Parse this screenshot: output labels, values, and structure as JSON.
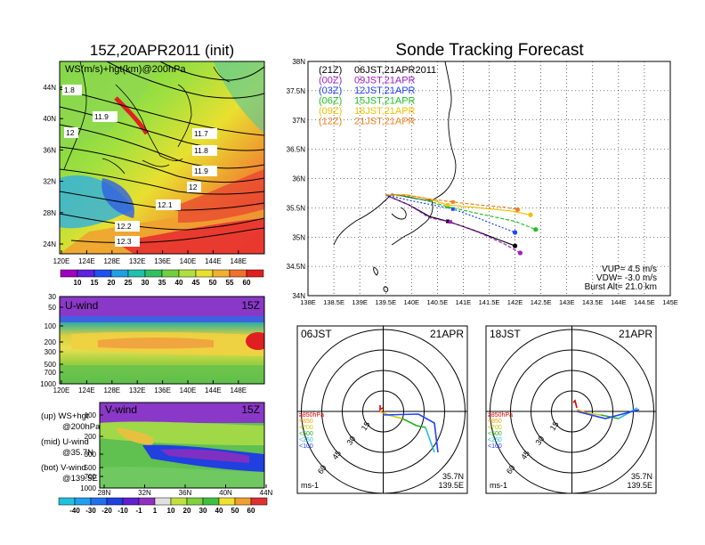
{
  "left_panel": {
    "title": "15Z,20APR2011 (init)",
    "top_map": {
      "label": "WS(m/s)+hgt(km)@200hPa",
      "y_ticks": [
        "44N",
        "40N",
        "36N",
        "32N",
        "28N",
        "24N"
      ],
      "x_ticks": [
        "120E",
        "124E",
        "128E",
        "132E",
        "136E",
        "140E",
        "144E",
        "148E"
      ],
      "contour_labels": [
        "1.8",
        "11.9",
        "12",
        "11.7",
        "11.8",
        "11.9",
        "12",
        "12.1",
        "12.2",
        "12.3"
      ]
    },
    "ws_colorbar": [
      "10",
      "15",
      "20",
      "25",
      "30",
      "35",
      "40",
      "45",
      "50",
      "55",
      "60"
    ],
    "u_wind": {
      "label": "U-wind",
      "time": "15Z",
      "y_ticks": [
        "30",
        "50",
        "100",
        "200",
        "300",
        "500",
        "700",
        "1000"
      ],
      "x_ticks": [
        "120E",
        "124E",
        "128E",
        "132E",
        "136E",
        "140E",
        "144E",
        "148E"
      ]
    },
    "v_wind": {
      "label": "V-wind",
      "time": "15Z",
      "y_ticks": [
        "100",
        "200",
        "300",
        "500",
        "700",
        "1000"
      ],
      "x_ticks": [
        "28N",
        "32N",
        "36N",
        "40N",
        "44N"
      ]
    },
    "notes": [
      {
        "pos": "(up)",
        "text": "WS+hgt",
        "sub": "@200hPa"
      },
      {
        "pos": "(mid)",
        "text": "U-wind",
        "sub": "@35.7N"
      },
      {
        "pos": "(bot)",
        "text": "V-wind",
        "sub": "@139.5E"
      }
    ],
    "wind_colorbar": [
      "-40",
      "-30",
      "-20",
      "-10",
      "-1",
      "1",
      "10",
      "20",
      "30",
      "40",
      "50",
      "60"
    ]
  },
  "right_panel": {
    "title": "Sonde Tracking Forecast",
    "y_ticks": [
      "38N",
      "37.5N",
      "37N",
      "36.5N",
      "36N",
      "35.5N",
      "35N",
      "34.5N",
      "34N"
    ],
    "x_ticks": [
      "138E",
      "138.5E",
      "139E",
      "139.5E",
      "140E",
      "140.5E",
      "141E",
      "141.5E",
      "142E",
      "142.5E",
      "143E",
      "143.5E",
      "144E",
      "144.5E",
      "145E"
    ],
    "legend": [
      {
        "code": "(21Z)",
        "label": "06JST,21APR2011",
        "color": "#000000"
      },
      {
        "code": "(00Z)",
        "label": "09JST,21APR",
        "color": "#a020c0"
      },
      {
        "code": "(03Z)",
        "label": "12JST,21APR",
        "color": "#2040ff"
      },
      {
        "code": "(06Z)",
        "label": "15JST,21APR",
        "color": "#20c020"
      },
      {
        "code": "(09Z)",
        "label": "18JST,21APR",
        "color": "#f0c000"
      },
      {
        "code": "(12Z)",
        "label": "21JST,21APR",
        "color": "#f08020"
      }
    ],
    "params": [
      "VUP= 4.5 m/s",
      "VDW= -3.0 m/s",
      "Burst Alt= 21.0 km"
    ]
  },
  "hodographs": [
    {
      "time": "06JST",
      "date": "21APR",
      "lat": "35.7N",
      "lon": "139.5E",
      "unit": "ms-1",
      "rings": [
        "15",
        "30",
        "45",
        "60"
      ]
    },
    {
      "time": "18JST",
      "date": "21APR",
      "lat": "35.7N",
      "lon": "139.5E",
      "unit": "ms-1",
      "rings": [
        "15",
        "30",
        "45",
        "60"
      ]
    }
  ],
  "pressure_legend": [
    {
      "label": "≥850hPa",
      "color": "#e00000"
    },
    {
      "label": "<850",
      "color": "#f0a000"
    },
    {
      "label": "<700",
      "color": "#c8c800"
    },
    {
      "label": "<500",
      "color": "#20b020"
    },
    {
      "label": "<250",
      "color": "#20c0e0"
    },
    {
      "label": "<100",
      "color": "#2040ff"
    }
  ],
  "chart_data": [
    {
      "type": "line",
      "title": "Sonde Tracking Forecast",
      "xlim": [
        138,
        145
      ],
      "ylim": [
        34,
        38
      ],
      "series": [
        {
          "name": "06JST,21APR2011",
          "x": [
            139.5,
            139.95,
            140.35,
            140.7,
            141.2,
            141.7,
            142.0
          ],
          "y": [
            35.72,
            35.55,
            35.35,
            35.27,
            35.12,
            34.95,
            34.85
          ]
        },
        {
          "name": "09JST,21APR",
          "x": [
            139.5,
            139.95,
            140.35,
            140.75,
            141.3,
            141.8,
            142.1
          ],
          "y": [
            35.72,
            35.55,
            35.33,
            35.26,
            35.08,
            34.88,
            34.73
          ]
        },
        {
          "name": "12JST,21APR",
          "x": [
            139.5,
            140.0,
            140.4,
            140.8,
            141.3,
            141.7,
            142.0
          ],
          "y": [
            35.72,
            35.62,
            35.55,
            35.48,
            35.32,
            35.18,
            35.08
          ]
        },
        {
          "name": "15JST,21APR",
          "x": [
            139.5,
            139.9,
            140.3,
            140.7,
            141.3,
            142.0,
            142.4
          ],
          "y": [
            35.72,
            35.7,
            35.62,
            35.52,
            35.4,
            35.27,
            35.13
          ]
        },
        {
          "name": "18JST,21APR",
          "x": [
            139.5,
            139.9,
            140.3,
            140.7,
            141.3,
            141.9,
            142.3
          ],
          "y": [
            35.72,
            35.72,
            35.66,
            35.55,
            35.5,
            35.45,
            35.38
          ]
        },
        {
          "name": "21JST,21APR",
          "x": [
            139.5,
            139.9,
            140.3,
            140.8,
            141.3,
            141.8,
            142.05
          ],
          "y": [
            35.72,
            35.72,
            35.66,
            35.6,
            35.55,
            35.51,
            35.47
          ]
        }
      ]
    }
  ]
}
